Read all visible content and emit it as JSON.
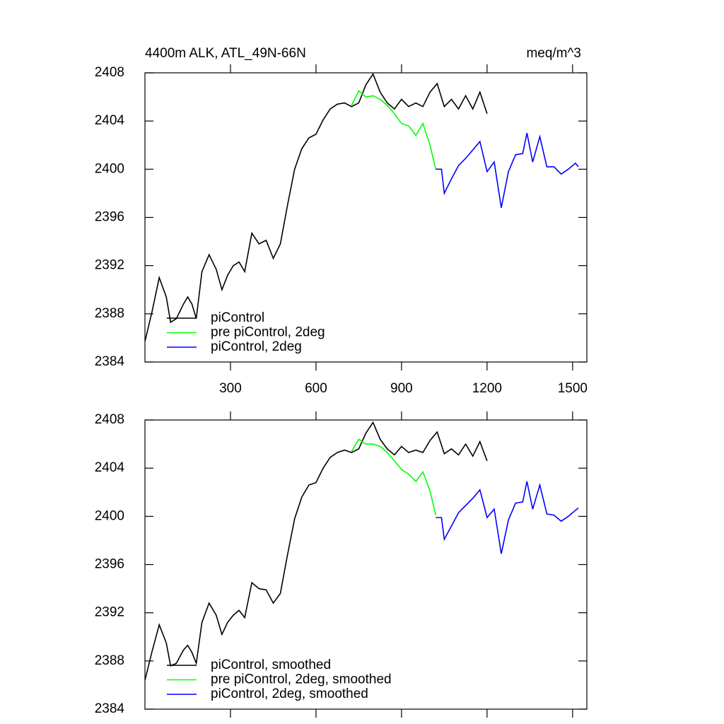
{
  "chart_data": [
    {
      "type": "line",
      "title": "4400m ALK, ATL_49N-66N",
      "units": "meq/m^3",
      "xlim": [
        0,
        1550
      ],
      "xticks": [
        300,
        600,
        900,
        1200,
        1500
      ],
      "ylim": [
        2384,
        2408
      ],
      "yticks": [
        2384,
        2388,
        2392,
        2396,
        2400,
        2404,
        2408
      ],
      "legend": "lower left",
      "series": [
        {
          "name": "piControl",
          "color": "#000000",
          "x": [
            0,
            25,
            50,
            75,
            90,
            110,
            135,
            150,
            165,
            180,
            200,
            225,
            250,
            270,
            290,
            310,
            330,
            350,
            375,
            400,
            425,
            450,
            475,
            500,
            525,
            550,
            575,
            600,
            625,
            650,
            675,
            700,
            725,
            750,
            775,
            800,
            825,
            850,
            875,
            900,
            925,
            950,
            975,
            1000,
            1025,
            1050,
            1075,
            1100,
            1125,
            1150,
            1175,
            1200
          ],
          "values": [
            2385.7,
            2388.2,
            2391.0,
            2389.4,
            2387.3,
            2387.6,
            2388.8,
            2389.4,
            2388.8,
            2387.6,
            2391.5,
            2392.9,
            2391.7,
            2390.0,
            2391.2,
            2392.0,
            2392.3,
            2391.5,
            2394.7,
            2393.8,
            2394.1,
            2392.6,
            2393.8,
            2397.0,
            2400.0,
            2401.7,
            2402.6,
            2402.9,
            2404.1,
            2405.0,
            2405.4,
            2405.5,
            2405.2,
            2405.5,
            2407.0,
            2407.9,
            2406.4,
            2405.5,
            2405.0,
            2405.8,
            2405.2,
            2405.5,
            2405.2,
            2406.4,
            2407.1,
            2405.2,
            2405.8,
            2405.0,
            2406.1,
            2405.0,
            2406.4,
            2404.6
          ]
        },
        {
          "name": "pre piControl, 2deg",
          "color": "#00ff00",
          "x": [
            725,
            750,
            775,
            800,
            825,
            850,
            875,
            900,
            925,
            950,
            975,
            1000,
            1020
          ],
          "values": [
            2405.3,
            2406.5,
            2406.0,
            2406.1,
            2405.8,
            2405.3,
            2404.6,
            2403.8,
            2403.6,
            2402.8,
            2403.8,
            2402.0,
            2400.0
          ]
        },
        {
          "name": "piControl, 2deg",
          "color": "#0000ff",
          "x": [
            1020,
            1040,
            1050,
            1075,
            1100,
            1125,
            1150,
            1175,
            1200,
            1225,
            1250,
            1275,
            1300,
            1325,
            1340,
            1360,
            1385,
            1410,
            1435,
            1460,
            1485,
            1510,
            1520
          ],
          "values": [
            2400.0,
            2400.0,
            2398.0,
            2399.2,
            2400.3,
            2400.9,
            2401.6,
            2402.3,
            2399.8,
            2400.6,
            2396.8,
            2399.8,
            2401.2,
            2401.3,
            2403.0,
            2400.6,
            2402.7,
            2400.2,
            2400.2,
            2399.6,
            2400.0,
            2400.5,
            2400.2
          ]
        }
      ]
    },
    {
      "type": "line",
      "xlim": [
        0,
        1550
      ],
      "xticks": [
        300,
        600,
        900,
        1200,
        1500
      ],
      "ylim": [
        2384,
        2408
      ],
      "yticks": [
        2384,
        2388,
        2392,
        2396,
        2400,
        2404,
        2408
      ],
      "legend": "lower left",
      "series": [
        {
          "name": "piControl, smoothed",
          "color": "#000000",
          "x": [
            0,
            25,
            50,
            75,
            90,
            110,
            135,
            150,
            165,
            180,
            200,
            225,
            250,
            270,
            290,
            310,
            330,
            350,
            375,
            400,
            425,
            450,
            475,
            500,
            525,
            550,
            575,
            600,
            625,
            650,
            675,
            700,
            725,
            750,
            775,
            800,
            825,
            850,
            875,
            900,
            925,
            950,
            975,
            1000,
            1025,
            1050,
            1075,
            1100,
            1125,
            1150,
            1175,
            1200
          ],
          "values": [
            2386.4,
            2388.8,
            2391.0,
            2389.5,
            2387.6,
            2387.8,
            2388.9,
            2389.3,
            2388.7,
            2387.8,
            2391.2,
            2392.8,
            2391.8,
            2390.2,
            2391.2,
            2391.8,
            2392.2,
            2391.6,
            2394.5,
            2394.0,
            2393.9,
            2392.8,
            2393.6,
            2396.8,
            2399.8,
            2401.6,
            2402.6,
            2402.8,
            2404.0,
            2404.9,
            2405.3,
            2405.5,
            2405.3,
            2405.6,
            2406.9,
            2407.8,
            2406.4,
            2405.6,
            2405.1,
            2405.8,
            2405.3,
            2405.5,
            2405.3,
            2406.3,
            2407.0,
            2405.2,
            2405.6,
            2405.1,
            2406.0,
            2405.0,
            2406.2,
            2404.6
          ]
        },
        {
          "name": "pre piControl, 2deg, smoothed",
          "color": "#00ff00",
          "x": [
            725,
            750,
            775,
            800,
            825,
            850,
            875,
            900,
            925,
            950,
            975,
            1000,
            1020
          ],
          "values": [
            2405.4,
            2406.4,
            2406.0,
            2406.0,
            2405.8,
            2405.3,
            2404.6,
            2403.9,
            2403.5,
            2402.9,
            2403.7,
            2402.1,
            2400.1
          ]
        },
        {
          "name": "piControl, 2deg, smoothed",
          "color": "#0000ff",
          "x": [
            1020,
            1040,
            1050,
            1075,
            1100,
            1125,
            1150,
            1175,
            1200,
            1225,
            1250,
            1275,
            1300,
            1325,
            1340,
            1360,
            1385,
            1410,
            1435,
            1460,
            1485,
            1510,
            1520
          ],
          "values": [
            2399.9,
            2399.9,
            2398.1,
            2399.2,
            2400.3,
            2400.9,
            2401.5,
            2402.2,
            2399.9,
            2400.6,
            2396.9,
            2399.7,
            2401.1,
            2401.2,
            2402.9,
            2400.6,
            2402.6,
            2400.2,
            2400.1,
            2399.6,
            2400.0,
            2400.5,
            2400.7
          ]
        }
      ]
    }
  ]
}
